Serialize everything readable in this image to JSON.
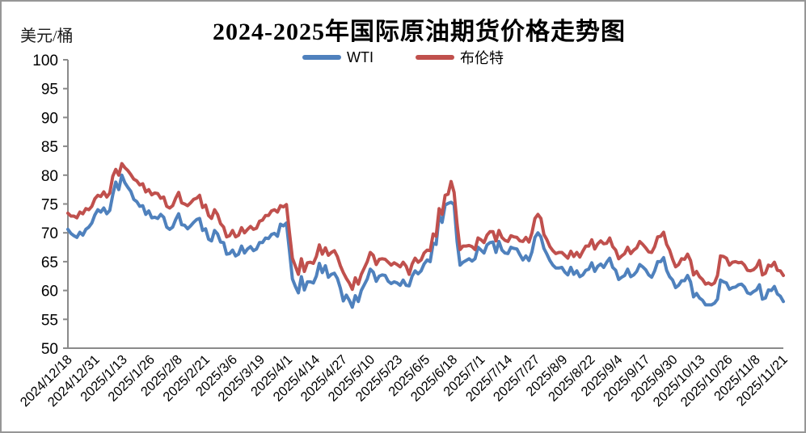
{
  "chart_data": {
    "type": "line",
    "title": "2024-2025年国际原油期货价格走势图",
    "ylabel": "美元/桶",
    "ylim": [
      50,
      100
    ],
    "ytick_step": 5,
    "grid": false,
    "legend_position": "top-center",
    "axis_color": "#8a8a8a",
    "x_tick_labels": [
      "2024/12/18",
      "2024/12/31",
      "2025/1/13",
      "2025/1/26",
      "2025/2/8",
      "2025/2/21",
      "2025/3/6",
      "2025/3/19",
      "2025/4/1",
      "2025/4/14",
      "2025/4/27",
      "2025/5/10",
      "2025/5/23",
      "2025/6/5",
      "2025/6/18",
      "2025/7/1",
      "2025/7/14",
      "2025/7/27",
      "2025/8/9",
      "2025/8/22",
      "2025/9/4",
      "2025/9/17",
      "2025/9/30",
      "2025/10/13",
      "2025/10/26",
      "2025/11/8",
      "2025/11/21"
    ],
    "dates": [
      "2024/12/18",
      "2024/12/19",
      "2024/12/20",
      "2024/12/23",
      "2024/12/24",
      "2024/12/26",
      "2024/12/27",
      "2024/12/30",
      "2024/12/31",
      "2025/1/2",
      "2025/1/3",
      "2025/1/6",
      "2025/1/7",
      "2025/1/8",
      "2025/1/9",
      "2025/1/10",
      "2025/1/13",
      "2025/1/14",
      "2025/1/15",
      "2025/1/16",
      "2025/1/17",
      "2025/1/20",
      "2025/1/21",
      "2025/1/22",
      "2025/1/23",
      "2025/1/24",
      "2025/1/27",
      "2025/1/28",
      "2025/1/29",
      "2025/1/30",
      "2025/1/31",
      "2025/2/3",
      "2025/2/4",
      "2025/2/5",
      "2025/2/6",
      "2025/2/7",
      "2025/2/10",
      "2025/2/11",
      "2025/2/12",
      "2025/2/13",
      "2025/2/14",
      "2025/2/17",
      "2025/2/18",
      "2025/2/19",
      "2025/2/20",
      "2025/2/21",
      "2025/2/24",
      "2025/2/25",
      "2025/2/26",
      "2025/2/27",
      "2025/2/28",
      "2025/3/3",
      "2025/3/4",
      "2025/3/5",
      "2025/3/6",
      "2025/3/7",
      "2025/3/10",
      "2025/3/11",
      "2025/3/12",
      "2025/3/13",
      "2025/3/14",
      "2025/3/17",
      "2025/3/18",
      "2025/3/19",
      "2025/3/20",
      "2025/3/21",
      "2025/3/24",
      "2025/3/25",
      "2025/3/26",
      "2025/3/27",
      "2025/3/28",
      "2025/3/31",
      "2025/4/1",
      "2025/4/2",
      "2025/4/3",
      "2025/4/4",
      "2025/4/7",
      "2025/4/8",
      "2025/4/9",
      "2025/4/10",
      "2025/4/11",
      "2025/4/14",
      "2025/4/15",
      "2025/4/16",
      "2025/4/17",
      "2025/4/21",
      "2025/4/22",
      "2025/4/23",
      "2025/4/24",
      "2025/4/25",
      "2025/4/28",
      "2025/4/29",
      "2025/4/30",
      "2025/5/1",
      "2025/5/2",
      "2025/5/5",
      "2025/5/6",
      "2025/5/7",
      "2025/5/8",
      "2025/5/9",
      "2025/5/12",
      "2025/5/13",
      "2025/5/14",
      "2025/5/15",
      "2025/5/16",
      "2025/5/19",
      "2025/5/20",
      "2025/5/21",
      "2025/5/22",
      "2025/5/23",
      "2025/5/26",
      "2025/5/27",
      "2025/5/28",
      "2025/5/29",
      "2025/5/30",
      "2025/6/2",
      "2025/6/3",
      "2025/6/4",
      "2025/6/5",
      "2025/6/6",
      "2025/6/9",
      "2025/6/10",
      "2025/6/11",
      "2025/6/12",
      "2025/6/13",
      "2025/6/16",
      "2025/6/17",
      "2025/6/18",
      "2025/6/19",
      "2025/6/20",
      "2025/6/23",
      "2025/6/24",
      "2025/6/25",
      "2025/6/26",
      "2025/6/27",
      "2025/6/30",
      "2025/7/1",
      "2025/7/2",
      "2025/7/3",
      "2025/7/4",
      "2025/7/7",
      "2025/7/8",
      "2025/7/9",
      "2025/7/10",
      "2025/7/11",
      "2025/7/14",
      "2025/7/15",
      "2025/7/16",
      "2025/7/17",
      "2025/7/18",
      "2025/7/21",
      "2025/7/22",
      "2025/7/23",
      "2025/7/24",
      "2025/7/25",
      "2025/7/28",
      "2025/7/29",
      "2025/7/30",
      "2025/7/31",
      "2025/8/1",
      "2025/8/4",
      "2025/8/5",
      "2025/8/6",
      "2025/8/7",
      "2025/8/8",
      "2025/8/11",
      "2025/8/12",
      "2025/8/13",
      "2025/8/14",
      "2025/8/15",
      "2025/8/18",
      "2025/8/19",
      "2025/8/20",
      "2025/8/21",
      "2025/8/22",
      "2025/8/25",
      "2025/8/26",
      "2025/8/27",
      "2025/8/28",
      "2025/8/29",
      "2025/9/1",
      "2025/9/2",
      "2025/9/3",
      "2025/9/4",
      "2025/9/5",
      "2025/9/8",
      "2025/9/9",
      "2025/9/10",
      "2025/9/11",
      "2025/9/12",
      "2025/9/15",
      "2025/9/16",
      "2025/9/17",
      "2025/9/18",
      "2025/9/19",
      "2025/9/22",
      "2025/9/23",
      "2025/9/24",
      "2025/9/25",
      "2025/9/26",
      "2025/9/29",
      "2025/9/30",
      "2025/10/1",
      "2025/10/2",
      "2025/10/3",
      "2025/10/6",
      "2025/10/7",
      "2025/10/8",
      "2025/10/9",
      "2025/10/10",
      "2025/10/13",
      "2025/10/14",
      "2025/10/15",
      "2025/10/16",
      "2025/10/17",
      "2025/10/20",
      "2025/10/21",
      "2025/10/22",
      "2025/10/23",
      "2025/10/24",
      "2025/10/27",
      "2025/10/28",
      "2025/10/29",
      "2025/10/30",
      "2025/10/31",
      "2025/11/3",
      "2025/11/4",
      "2025/11/5",
      "2025/11/6",
      "2025/11/7",
      "2025/11/10",
      "2025/11/11",
      "2025/11/12",
      "2025/11/13",
      "2025/11/14",
      "2025/11/17",
      "2025/11/18",
      "2025/11/19",
      "2025/11/20",
      "2025/11/21"
    ],
    "series": [
      {
        "name": "WTI",
        "color": "#4F81BD",
        "values": [
          70.6,
          69.9,
          69.5,
          69.2,
          70.1,
          69.6,
          70.6,
          71.0,
          71.7,
          73.1,
          74.0,
          73.6,
          74.3,
          73.3,
          73.9,
          76.6,
          78.8,
          77.5,
          80.0,
          78.7,
          77.9,
          77.2,
          75.8,
          75.4,
          74.6,
          74.7,
          73.2,
          73.8,
          72.6,
          72.7,
          72.5,
          73.2,
          72.7,
          71.0,
          70.6,
          71.0,
          72.3,
          73.3,
          71.4,
          71.3,
          70.7,
          71.2,
          71.8,
          72.3,
          72.5,
          70.4,
          70.7,
          68.9,
          68.6,
          70.4,
          69.8,
          68.4,
          68.3,
          66.3,
          66.4,
          67.0,
          66.0,
          66.3,
          67.7,
          66.5,
          67.2,
          67.6,
          66.9,
          67.2,
          68.3,
          68.3,
          69.1,
          69.0,
          69.7,
          69.9,
          69.4,
          71.5,
          71.2,
          71.7,
          67.0,
          62.0,
          60.7,
          59.6,
          62.4,
          60.1,
          61.5,
          61.5,
          61.3,
          62.5,
          64.7,
          63.1,
          64.3,
          62.3,
          62.8,
          63.0,
          62.1,
          60.4,
          58.2,
          59.2,
          58.3,
          57.1,
          59.1,
          58.1,
          60.0,
          61.0,
          62.0,
          63.7,
          63.2,
          61.6,
          62.5,
          62.7,
          62.6,
          61.6,
          61.2,
          61.5,
          61.3,
          60.9,
          61.8,
          60.9,
          60.8,
          62.5,
          63.4,
          62.9,
          63.4,
          64.6,
          65.3,
          65.0,
          68.2,
          68.0,
          73.0,
          71.8,
          74.8,
          75.1,
          75.3,
          74.9,
          68.5,
          64.4,
          64.9,
          65.2,
          65.5,
          65.1,
          65.5,
          67.5,
          67.0,
          66.5,
          67.9,
          68.3,
          68.4,
          66.6,
          68.5,
          67.0,
          66.5,
          66.4,
          67.5,
          67.3,
          67.2,
          66.2,
          65.3,
          66.0,
          65.2,
          66.7,
          69.2,
          70.0,
          69.3,
          67.3,
          66.3,
          65.2,
          64.4,
          63.9,
          63.9,
          64.0,
          63.2,
          62.7,
          64.0,
          62.8,
          63.4,
          62.4,
          62.7,
          63.5,
          63.7,
          64.8,
          63.3,
          64.2,
          64.6,
          64.0,
          64.9,
          65.6,
          64.0,
          63.5,
          61.9,
          62.3,
          62.6,
          63.7,
          62.4,
          62.7,
          63.3,
          64.5,
          64.1,
          63.6,
          62.7,
          62.3,
          63.4,
          65.0,
          65.0,
          65.7,
          63.5,
          62.4,
          61.8,
          60.5,
          60.9,
          61.7,
          61.7,
          62.6,
          61.5,
          58.9,
          59.5,
          58.7,
          58.3,
          57.5,
          57.5,
          57.5,
          57.8,
          58.5,
          61.8,
          61.5,
          61.3,
          60.2,
          60.5,
          60.6,
          61.0,
          61.1,
          60.6,
          59.6,
          59.4,
          59.8,
          60.1,
          61.0,
          58.5,
          58.7,
          60.1,
          60.0,
          60.7,
          59.4,
          59.0,
          58.1
        ]
      },
      {
        "name": "布伦特",
        "color": "#C0504D",
        "values": [
          73.4,
          72.9,
          72.9,
          72.6,
          73.6,
          73.3,
          74.2,
          74.0,
          74.6,
          75.9,
          76.5,
          76.3,
          77.1,
          76.2,
          76.9,
          79.8,
          81.0,
          80.0,
          82.0,
          81.3,
          80.8,
          80.1,
          79.3,
          79.0,
          78.3,
          78.5,
          77.1,
          77.5,
          76.6,
          76.9,
          76.8,
          76.0,
          76.2,
          74.6,
          74.3,
          74.7,
          76.0,
          77.0,
          75.2,
          75.0,
          74.7,
          75.2,
          75.8,
          76.0,
          76.5,
          74.4,
          74.8,
          73.0,
          72.5,
          74.0,
          73.2,
          71.6,
          71.0,
          69.3,
          69.5,
          70.4,
          69.3,
          69.6,
          70.9,
          70.0,
          70.6,
          71.1,
          70.6,
          70.8,
          72.0,
          72.2,
          73.0,
          73.0,
          73.8,
          74.0,
          73.6,
          74.7,
          74.5,
          74.9,
          70.1,
          65.6,
          64.2,
          62.8,
          65.5,
          63.3,
          64.8,
          64.9,
          64.7,
          65.9,
          67.9,
          66.3,
          67.4,
          66.1,
          66.6,
          66.9,
          65.9,
          64.3,
          63.1,
          62.1,
          61.3,
          60.2,
          62.2,
          61.1,
          62.8,
          63.9,
          65.0,
          66.6,
          66.1,
          64.5,
          65.4,
          65.5,
          65.4,
          64.9,
          64.4,
          64.8,
          64.5,
          64.1,
          64.9,
          64.2,
          62.8,
          64.6,
          65.6,
          64.9,
          65.3,
          66.5,
          67.0,
          66.9,
          69.8,
          69.4,
          74.2,
          73.2,
          76.5,
          76.7,
          78.9,
          77.0,
          71.5,
          67.1,
          67.7,
          67.7,
          67.8,
          67.6,
          67.1,
          69.1,
          68.8,
          68.3,
          69.6,
          70.2,
          70.2,
          68.6,
          70.4,
          69.2,
          68.7,
          68.5,
          69.5,
          69.3,
          69.2,
          68.6,
          68.5,
          69.2,
          68.4,
          70.0,
          72.5,
          73.2,
          72.5,
          69.7,
          68.8,
          67.6,
          66.9,
          66.4,
          66.6,
          66.6,
          66.1,
          65.6,
          66.8,
          65.9,
          66.6,
          65.8,
          66.8,
          67.7,
          67.7,
          68.8,
          67.2,
          68.1,
          68.6,
          68.1,
          68.2,
          69.1,
          67.6,
          67.0,
          65.5,
          66.0,
          66.4,
          67.5,
          66.4,
          67.0,
          67.4,
          68.5,
          68.0,
          67.4,
          66.7,
          66.6,
          67.6,
          69.3,
          69.4,
          70.1,
          68.0,
          67.0,
          65.4,
          64.1,
          64.5,
          65.5,
          65.4,
          66.3,
          65.2,
          62.7,
          63.3,
          62.4,
          61.9,
          61.1,
          61.3,
          61.0,
          61.3,
          62.6,
          66.0,
          65.9,
          65.6,
          64.4,
          64.9,
          65.0,
          64.8,
          64.9,
          64.4,
          63.5,
          63.4,
          63.6,
          64.1,
          65.2,
          62.7,
          63.0,
          64.4,
          64.2,
          64.9,
          63.5,
          63.4,
          62.6
        ]
      }
    ]
  }
}
